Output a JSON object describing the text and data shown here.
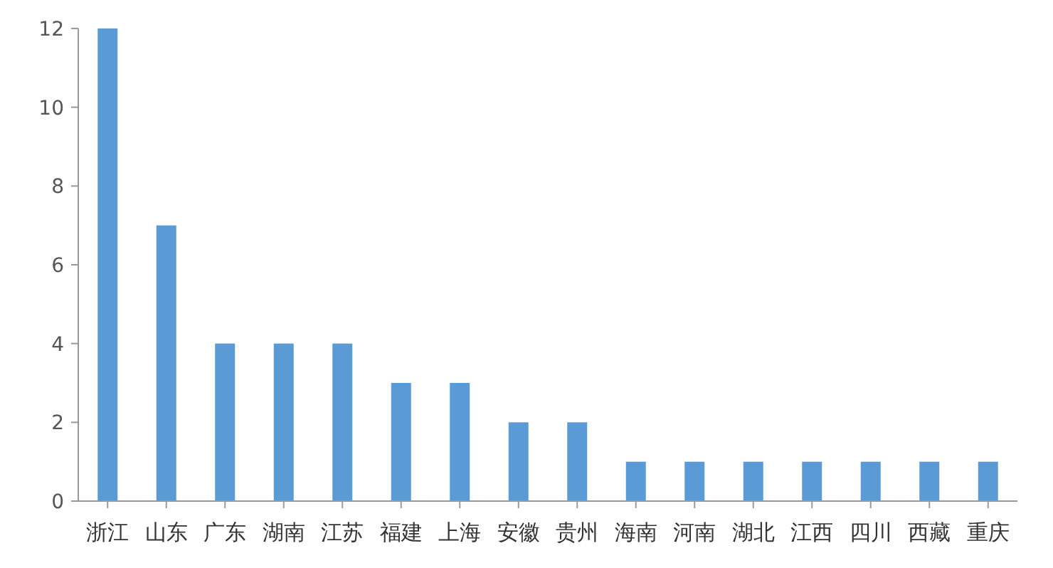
{
  "chart_data": {
    "type": "bar",
    "categories": [
      "浙江",
      "山东",
      "广东",
      "湖南",
      "江苏",
      "福建",
      "上海",
      "安徽",
      "贵州",
      "海南",
      "河南",
      "湖北",
      "江西",
      "四川",
      "西藏",
      "重庆"
    ],
    "values": [
      12,
      7,
      4,
      4,
      4,
      3,
      3,
      2,
      2,
      1,
      1,
      1,
      1,
      1,
      1,
      1
    ],
    "color": "#5b9bd5",
    "ylim": [
      0,
      12
    ],
    "yticks": [
      0,
      2,
      4,
      6,
      8,
      10,
      12
    ],
    "grid": false
  }
}
